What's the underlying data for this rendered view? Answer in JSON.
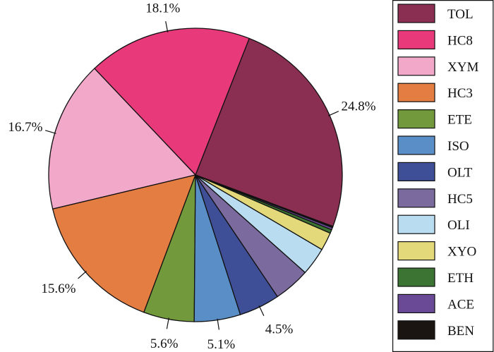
{
  "chart_data": {
    "type": "pie",
    "title": "",
    "legend_position": "right",
    "slices": [
      {
        "label": "TOL",
        "value": 24.8,
        "value_label": "24.8%",
        "color": "#8b2f52"
      },
      {
        "label": "HC8",
        "value": 18.1,
        "value_label": "18.1%",
        "color": "#e83a7a"
      },
      {
        "label": "XYM",
        "value": 16.7,
        "value_label": "16.7%",
        "color": "#f1a8c9"
      },
      {
        "label": "HC3",
        "value": 15.6,
        "value_label": "15.6%",
        "color": "#e47d42"
      },
      {
        "label": "ETE",
        "value": 5.6,
        "value_label": "5.6%",
        "color": "#729a3c"
      },
      {
        "label": "ISO",
        "value": 5.1,
        "value_label": "5.1%",
        "color": "#5a8ec6"
      },
      {
        "label": "OLT",
        "value": 4.5,
        "value_label": "4.5%",
        "color": "#3f4f97"
      },
      {
        "label": "HC5",
        "value": 4.0,
        "value_label": "",
        "color": "#7a6a9e"
      },
      {
        "label": "OLI",
        "value": 3.1,
        "value_label": "",
        "color": "#b9dcf1"
      },
      {
        "label": "XYO",
        "value": 2.0,
        "value_label": "",
        "color": "#e3d97a"
      },
      {
        "label": "ETH",
        "value": 0.4,
        "value_label": "",
        "color": "#3c7533"
      },
      {
        "label": "ACE",
        "value": 0.25,
        "value_label": "",
        "color": "#6a4a97"
      },
      {
        "label": "BEN",
        "value": 0.15,
        "value_label": "",
        "color": "#1a1511"
      }
    ]
  }
}
